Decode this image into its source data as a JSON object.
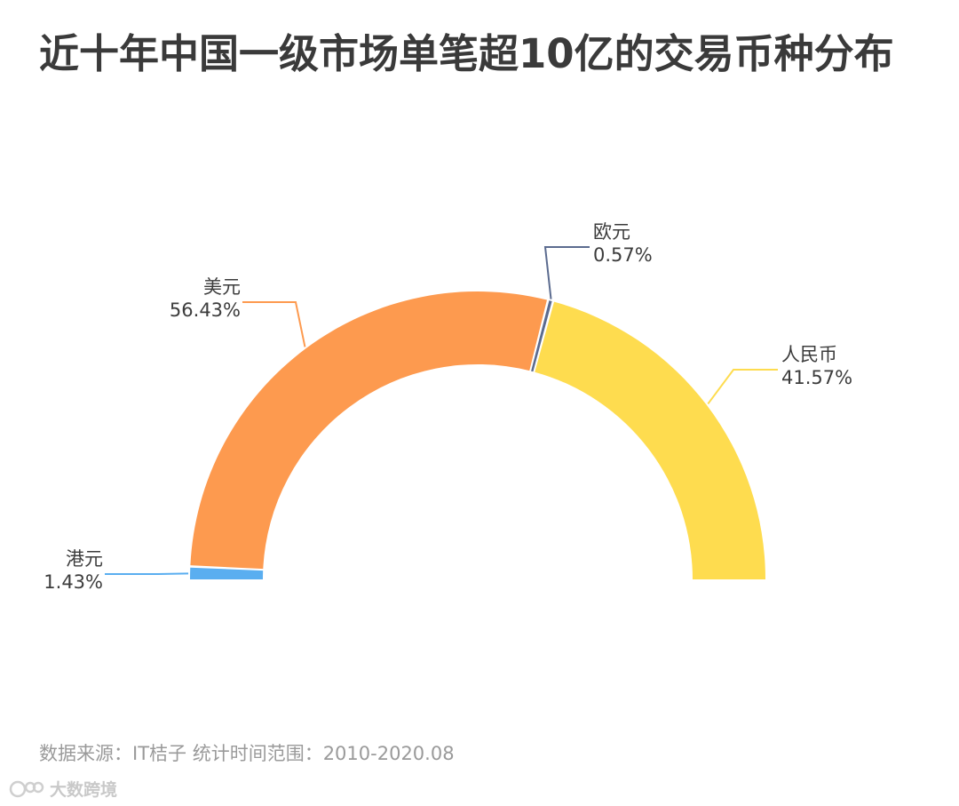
{
  "title": "近十年中国一级市场单笔超10亿的交易币种分布",
  "chart_data": {
    "type": "pie",
    "variant": "half-donut",
    "slices": [
      {
        "name": "港元",
        "percent_label": "1.43%",
        "value": 1.43,
        "color": "#5aaef0"
      },
      {
        "name": "美元",
        "percent_label": "56.43%",
        "value": 56.43,
        "color": "#fd9a4f"
      },
      {
        "name": "欧元",
        "percent_label": "0.57%",
        "value": 0.57,
        "color": "#5b6b8f"
      },
      {
        "name": "人民币",
        "percent_label": "41.57%",
        "value": 41.57,
        "color": "#fedc4f"
      }
    ]
  },
  "footer": {
    "source": "数据来源：IT桔子 统计时间范围：2010-2020.08"
  },
  "logo": {
    "text": "大数跨境",
    "icon": "brand-logo-icon"
  }
}
